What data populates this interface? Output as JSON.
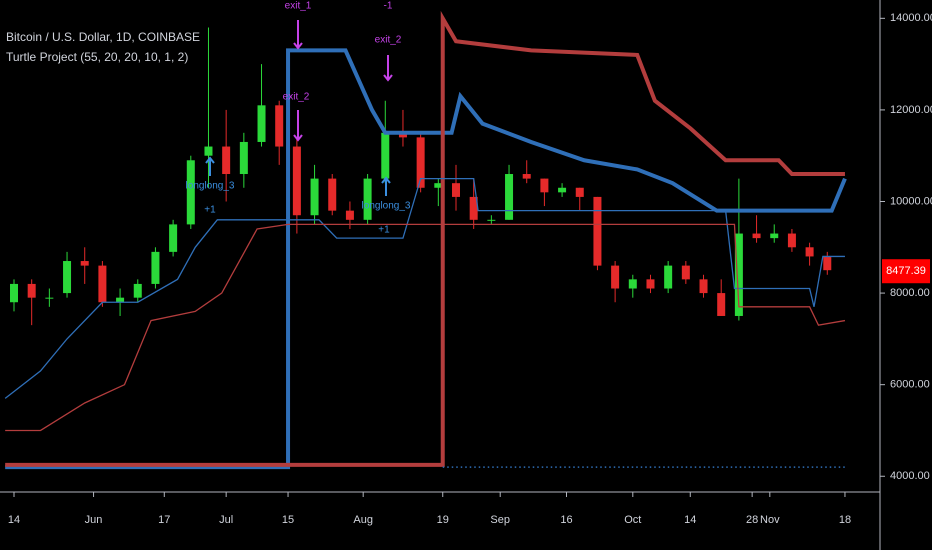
{
  "chart_data": {
    "type": "candlestick",
    "title": "Bitcoin / U.S. Dollar, 1D, COINBASE",
    "subtitle": "Turtle Project (55, 20, 20, 10, 1, 2)",
    "up_color": "#2bd93a",
    "down_color": "#e52a2a",
    "x": [
      "May 14",
      "May 18",
      "May 22",
      "May 26",
      "May 30",
      "Jun 3",
      "Jun 7",
      "Jun 11",
      "Jun 15",
      "Jun 19",
      "Jun 23",
      "Jun 27",
      "Jul 1",
      "Jul 5",
      "Jul 9",
      "Jul 13",
      "Jul 17",
      "Jul 21",
      "Jul 25",
      "Jul 29",
      "Aug 2",
      "Aug 6",
      "Aug 10",
      "Aug 14",
      "Aug 18",
      "Aug 22",
      "Aug 26",
      "Aug 30",
      "Sep 3",
      "Sep 7",
      "Sep 11",
      "Sep 15",
      "Sep 19",
      "Sep 23",
      "Sep 27",
      "Oct 1",
      "Oct 5",
      "Oct 9",
      "Oct 13",
      "Oct 17",
      "Oct 21",
      "Oct 25",
      "Oct 29",
      "Nov 2",
      "Nov 6",
      "Nov 10",
      "Nov 14"
    ],
    "open": [
      7800,
      8200,
      7900,
      8000,
      8700,
      8600,
      7800,
      7900,
      8200,
      8900,
      9500,
      11000,
      11200,
      10600,
      11300,
      12100,
      11200,
      9700,
      10500,
      9800,
      9600,
      10500,
      11500,
      11400,
      10300,
      10400,
      10100,
      9600,
      9600,
      10600,
      10500,
      10200,
      10300,
      10100,
      8600,
      8100,
      8300,
      8100,
      8600,
      8300,
      8000,
      7500,
      9300,
      9200,
      9300,
      9000,
      8800
    ],
    "high": [
      8300,
      8300,
      8100,
      8900,
      9000,
      8700,
      8100,
      8300,
      9000,
      9600,
      11000,
      13800,
      12000,
      11500,
      13000,
      12200,
      11400,
      10800,
      10600,
      10000,
      10600,
      12200,
      12000,
      11500,
      10500,
      10800,
      10500,
      9700,
      10800,
      10900,
      10500,
      10400,
      10300,
      10100,
      8700,
      8400,
      8400,
      8700,
      8700,
      8400,
      8300,
      10500,
      9700,
      9500,
      9400,
      9100,
      8900
    ],
    "low": [
      7600,
      7300,
      7700,
      7900,
      8200,
      7700,
      7500,
      7800,
      8100,
      8800,
      9400,
      10300,
      10000,
      10300,
      11200,
      10800,
      9300,
      9500,
      9700,
      9400,
      9500,
      10400,
      11200,
      10200,
      9900,
      9800,
      9400,
      9500,
      9600,
      10400,
      9900,
      10100,
      9800,
      8500,
      7800,
      7900,
      8000,
      8000,
      8200,
      7900,
      7500,
      7400,
      9100,
      9100,
      8900,
      8600,
      8400
    ],
    "close": [
      8200,
      7900,
      7900,
      8700,
      8600,
      7800,
      7900,
      8200,
      8900,
      9500,
      10900,
      11200,
      10600,
      11300,
      12100,
      11200,
      9700,
      10500,
      9800,
      9600,
      10500,
      11500,
      11400,
      10300,
      10400,
      10100,
      9600,
      9600,
      10600,
      10500,
      10200,
      10300,
      10100,
      8600,
      8100,
      8300,
      8100,
      8600,
      8300,
      8000,
      7500,
      9300,
      9200,
      9300,
      9000,
      8800,
      8500
    ],
    "lines": [
      {
        "color": "#2f6fb8",
        "width": 4,
        "x": [
          "May 12",
          "Jul 15",
          "Jul 15",
          "Jul 28",
          "Aug 3",
          "Aug 6",
          "Aug 21",
          "Aug 23",
          "Aug 28",
          "Sep 8",
          "Sep 20",
          "Oct 2",
          "Oct 10",
          "Oct 20",
          "Nov 15",
          "Nov 18"
        ],
        "values": [
          4200,
          4200,
          13300,
          13300,
          12000,
          11500,
          11500,
          12300,
          11700,
          11300,
          10900,
          10700,
          10400,
          9800,
          9800,
          10500
        ]
      },
      {
        "color": "#b33d3d",
        "width": 4,
        "x": [
          "May 12",
          "Aug 19",
          "Aug 19",
          "Aug 22",
          "Sep 8",
          "Oct 2",
          "Oct 6",
          "Oct 14",
          "Oct 22",
          "Nov 3",
          "Nov 6",
          "Nov 18"
        ],
        "values": [
          4250,
          4250,
          14000,
          13500,
          13300,
          13200,
          12200,
          11600,
          10900,
          10900,
          10600,
          10600
        ]
      },
      {
        "color": "#2f6fb8",
        "width": 1.3,
        "x": [
          "May 12",
          "May 20",
          "May 26",
          "Jun 3",
          "Jun 11",
          "Jun 20",
          "Jun 24",
          "Jun 29",
          "Jul 22",
          "Jul 26",
          "Aug 10",
          "Aug 14",
          "Aug 26",
          "Aug 27",
          "Oct 22",
          "Oct 24",
          "Nov 10",
          "Nov 11",
          "Nov 13",
          "Nov 18"
        ],
        "values": [
          5700,
          6300,
          7000,
          7800,
          7800,
          8300,
          9000,
          9600,
          9600,
          9200,
          9200,
          10500,
          10500,
          9800,
          9800,
          8100,
          8100,
          7700,
          8800,
          8800
        ]
      },
      {
        "color": "#b33d3d",
        "width": 1.3,
        "x": [
          "May 12",
          "May 20",
          "May 30",
          "Jun 8",
          "Jun 14",
          "Jun 24",
          "Jun 30",
          "Jul 8",
          "Jul 15",
          "Oct 24",
          "Oct 25",
          "Nov 10",
          "Nov 12",
          "Nov 18"
        ],
        "values": [
          5000,
          5000,
          5600,
          6000,
          7400,
          7600,
          8000,
          9400,
          9500,
          9500,
          7700,
          7700,
          7300,
          7400
        ]
      },
      {
        "color": "#2f6fb8",
        "width": 1.5,
        "dash": true,
        "x": [
          "Aug 19",
          "Nov 18"
        ],
        "values": [
          4200,
          4200
        ]
      }
    ],
    "annotations": [
      "exit_1",
      "-1",
      "exit_2",
      "exit_2",
      "longlong_3",
      "+1",
      "longlong_3",
      "+1"
    ],
    "last_price": 8477.39,
    "ylim": [
      3700,
      14400
    ],
    "yticks": [
      {
        "value": 4000,
        "label": "4000.00"
      },
      {
        "value": 6000,
        "label": "6000.00"
      },
      {
        "value": 8000,
        "label": "8000.00"
      },
      {
        "value": 10000,
        "label": "10000.00"
      },
      {
        "value": 12000,
        "label": "12000.00"
      },
      {
        "value": 14000,
        "label": "14000.00"
      }
    ],
    "xticks": [
      {
        "value": "May 14",
        "label": "14"
      },
      {
        "value": "Jun 1",
        "label": "Jun"
      },
      {
        "value": "Jun 17",
        "label": "17"
      },
      {
        "value": "Jul 1",
        "label": "Jul"
      },
      {
        "value": "Jul 15",
        "label": "15"
      },
      {
        "value": "Aug 1",
        "label": "Aug"
      },
      {
        "value": "Aug 19",
        "label": "19"
      },
      {
        "value": "Sep 1",
        "label": "Sep"
      },
      {
        "value": "Sep 16",
        "label": "16"
      },
      {
        "value": "Oct 1",
        "label": "Oct"
      },
      {
        "value": "Oct 14",
        "label": "14"
      },
      {
        "value": "Oct 28",
        "label": "28"
      },
      {
        "value": "Nov 1",
        "label": "Nov"
      },
      {
        "value": "Nov 18",
        "label": "18"
      }
    ]
  }
}
